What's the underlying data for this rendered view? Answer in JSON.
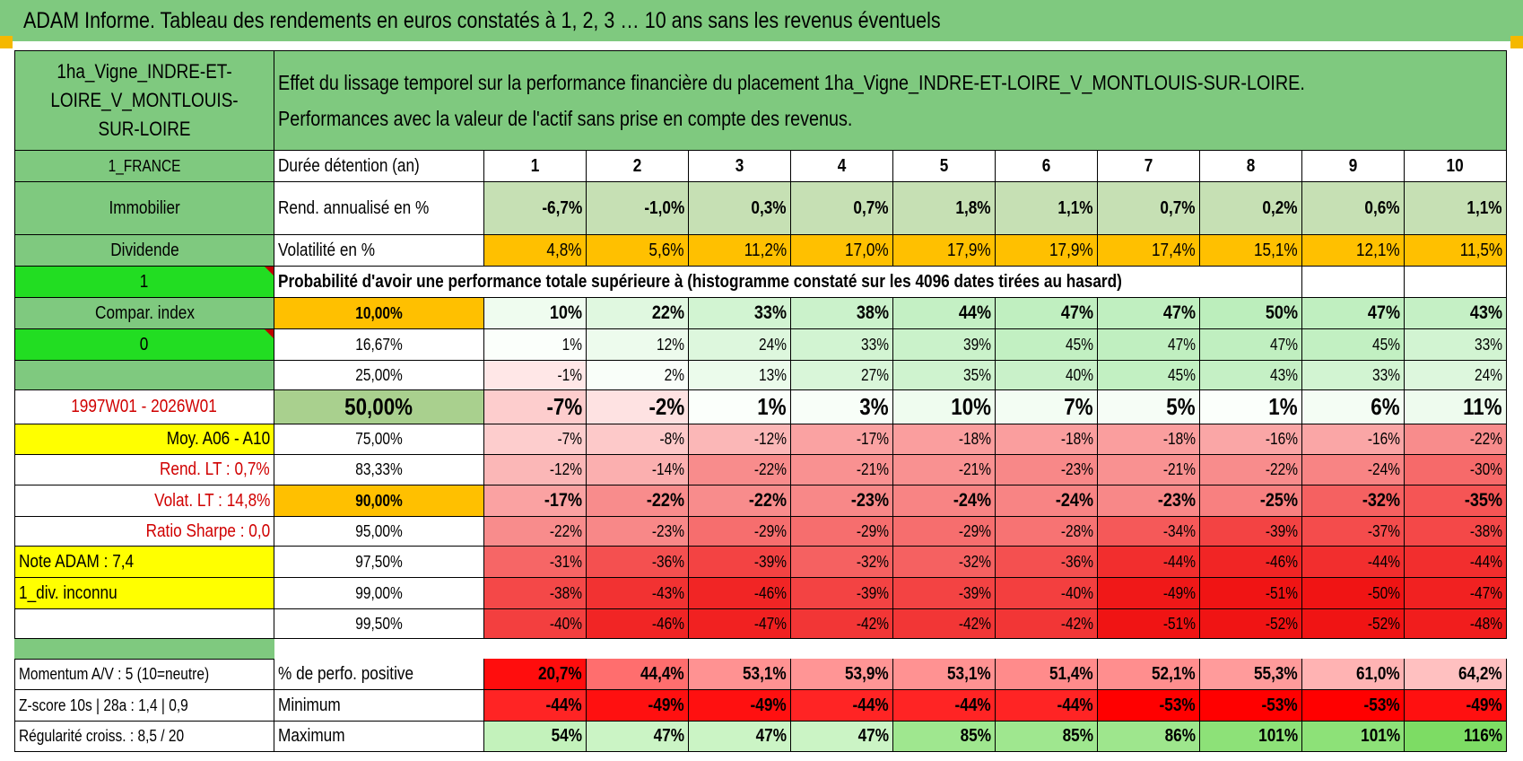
{
  "title": "ADAM Informe. Tableau des rendements en euros constatés à 1, 2, 3 … 10 ans sans les revenus éventuels",
  "sidebar": {
    "asset_name": "1ha_Vigne_INDRE-ET-LOIRE_V_MONTLOUIS-SUR-LOIRE",
    "country": "1_FRANCE",
    "category": "Immobilier",
    "distribution": "Dividende",
    "flag1": "1",
    "compar_index": "Compar. index",
    "flag2": "0",
    "period": "1997W01 - 2026W01",
    "moy": "Moy. A06 - A10",
    "rend_lt": "Rend. LT :    0,7%",
    "volat_lt": "Volat. LT :    14,8%",
    "sharpe": "Ratio Sharpe :    0,0",
    "note": "Note ADAM : 7,4",
    "div": "1_div. inconnu",
    "momentum": "Momentum A/V : 5 (10=neutre)",
    "zscore": "Z-score 10s | 28a : 1,4 | 0,9",
    "regularite": "Régularité croiss. : 8,5 / 20"
  },
  "header_text": {
    "line1": "Effet du lissage temporel sur la performance financière du placement 1ha_Vigne_INDRE-ET-LOIRE_V_MONTLOUIS-SUR-LOIRE.",
    "line2": "Performances avec la valeur de l'actif sans prise en compte des revenus."
  },
  "table": {
    "duration_label": "Durée détention (an)",
    "years": [
      "1",
      "2",
      "3",
      "4",
      "5",
      "6",
      "7",
      "8",
      "9",
      "10"
    ],
    "rend_label": "Rend. annualisé en %",
    "rend": [
      "-6,7%",
      "-1,0%",
      "0,3%",
      "0,7%",
      "1,8%",
      "1,1%",
      "0,7%",
      "0,2%",
      "0,6%",
      "1,1%"
    ],
    "vol_label": "Volatilité en %",
    "vol": [
      "4,8%",
      "5,6%",
      "11,2%",
      "17,0%",
      "17,9%",
      "17,9%",
      "17,4%",
      "15,1%",
      "12,1%",
      "11,5%"
    ],
    "prob_title": "Probabilité d'avoir une performance totale supérieure à (histogramme constaté sur les 4096 dates tirées au hasard)",
    "pct_rows": [
      {
        "label": "10,00%",
        "values": [
          "10%",
          "22%",
          "33%",
          "38%",
          "44%",
          "47%",
          "47%",
          "50%",
          "47%",
          "43%"
        ]
      },
      {
        "label": "16,67%",
        "values": [
          "1%",
          "12%",
          "24%",
          "33%",
          "39%",
          "45%",
          "47%",
          "47%",
          "45%",
          "33%"
        ]
      },
      {
        "label": "25,00%",
        "values": [
          "-1%",
          "2%",
          "13%",
          "27%",
          "35%",
          "40%",
          "45%",
          "43%",
          "33%",
          "24%"
        ]
      },
      {
        "label": "50,00%",
        "values": [
          "-7%",
          "-2%",
          "1%",
          "3%",
          "10%",
          "7%",
          "5%",
          "1%",
          "6%",
          "11%"
        ]
      },
      {
        "label": "75,00%",
        "values": [
          "-7%",
          "-8%",
          "-12%",
          "-17%",
          "-18%",
          "-18%",
          "-18%",
          "-16%",
          "-16%",
          "-22%"
        ]
      },
      {
        "label": "83,33%",
        "values": [
          "-12%",
          "-14%",
          "-22%",
          "-21%",
          "-21%",
          "-23%",
          "-21%",
          "-22%",
          "-24%",
          "-30%"
        ]
      },
      {
        "label": "90,00%",
        "values": [
          "-17%",
          "-22%",
          "-22%",
          "-23%",
          "-24%",
          "-24%",
          "-23%",
          "-25%",
          "-32%",
          "-35%"
        ]
      },
      {
        "label": "95,00%",
        "values": [
          "-22%",
          "-23%",
          "-29%",
          "-29%",
          "-29%",
          "-28%",
          "-34%",
          "-39%",
          "-37%",
          "-38%"
        ]
      },
      {
        "label": "97,50%",
        "values": [
          "-31%",
          "-36%",
          "-39%",
          "-32%",
          "-32%",
          "-36%",
          "-44%",
          "-46%",
          "-44%",
          "-44%"
        ]
      },
      {
        "label": "99,00%",
        "values": [
          "-38%",
          "-43%",
          "-46%",
          "-39%",
          "-39%",
          "-40%",
          "-49%",
          "-51%",
          "-50%",
          "-47%"
        ]
      },
      {
        "label": "99,50%",
        "values": [
          "-40%",
          "-46%",
          "-47%",
          "-42%",
          "-42%",
          "-42%",
          "-51%",
          "-52%",
          "-52%",
          "-48%"
        ]
      }
    ],
    "pos_label": "% de perfo. positive",
    "pos": [
      "20,7%",
      "44,4%",
      "53,1%",
      "53,9%",
      "53,1%",
      "51,4%",
      "52,1%",
      "55,3%",
      "61,0%",
      "64,2%"
    ],
    "min_label": "Minimum",
    "min": [
      "-44%",
      "-49%",
      "-49%",
      "-44%",
      "-44%",
      "-44%",
      "-53%",
      "-53%",
      "-53%",
      "-49%"
    ],
    "max_label": "Maximum",
    "max": [
      "54%",
      "47%",
      "47%",
      "47%",
      "85%",
      "85%",
      "86%",
      "101%",
      "101%",
      "116%"
    ]
  },
  "colors": {
    "green_header": "#7fc97f",
    "bright_green": "#22dd22",
    "yellow": "#ffff00",
    "orange": "#ffc000",
    "rend_green": "#c6e0b4"
  }
}
